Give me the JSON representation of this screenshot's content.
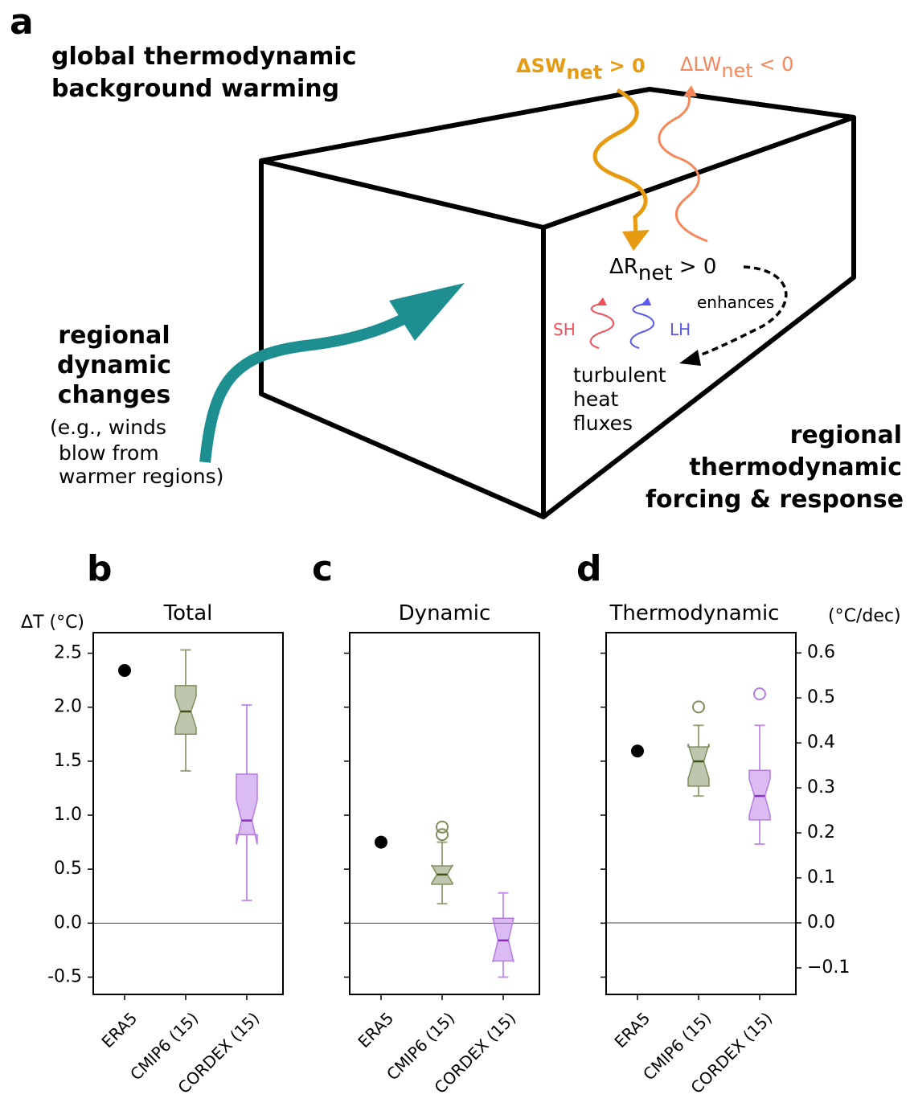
{
  "diagram": {
    "panel_label": "a",
    "global_warming": [
      "global thermodynamic",
      "background warming"
    ],
    "sw": {
      "text": "ΔSW",
      "sub": "net",
      "rest": " > 0"
    },
    "lw": {
      "text": "ΔLW",
      "sub": "net",
      "rest": " < 0"
    },
    "rnet": {
      "text": "ΔR",
      "sub": "net",
      "rest": " > 0"
    },
    "enhances": "enhances",
    "sh": "SH",
    "lh": "LH",
    "turbulent": [
      "turbulent",
      "heat",
      "fluxes"
    ],
    "dynamic": [
      "regional",
      "dynamic",
      "changes"
    ],
    "example": [
      "(e.g., winds",
      "blow from",
      "warmer regions)"
    ],
    "thermo": [
      "regional",
      "thermodynamic",
      "forcing & response"
    ]
  },
  "chart_data": [
    {
      "type": "box",
      "panel_label": "b",
      "title": "Total",
      "y_label": "ΔT (°C)",
      "categories": [
        "ERA5",
        "CMIP6 (15)",
        "CORDEX (15)"
      ],
      "ylim": [
        -0.66,
        2.69
      ],
      "yticks": [
        -0.5,
        {
          "value": 0,
          "label": "0.0"
        },
        0.5,
        {
          "value": 1,
          "label": "1.0"
        },
        1.5,
        {
          "value": 2,
          "label": "2.0"
        },
        2.5
      ],
      "tick_labels": true,
      "zero_line": true,
      "colors": [
        "#000000",
        "#7d8f5e",
        "#b57ae6"
      ],
      "points": [
        2.34,
        null,
        null
      ],
      "boxes": [
        null,
        {
          "whislo": 1.41,
          "q1": 1.75,
          "notch_lo": 1.81,
          "med": 1.96,
          "notch_hi": 2.1,
          "q3": 2.2,
          "whishi": 2.53,
          "fliers": []
        },
        {
          "whislo": 0.21,
          "q1": 0.82,
          "notch_lo": 0.73,
          "med": 0.95,
          "notch_hi": 1.14,
          "q3": 1.38,
          "whishi": 2.02,
          "fliers": []
        }
      ]
    },
    {
      "type": "box",
      "panel_label": "c",
      "title": "Dynamic",
      "categories": [
        "ERA5",
        "CMIP6 (15)",
        "CORDEX (15)"
      ],
      "ylim": [
        -0.66,
        2.69
      ],
      "yticks": [
        -0.5,
        0,
        0.5,
        1,
        1.5,
        2,
        2.5
      ],
      "tick_labels": false,
      "zero_line": true,
      "colors": [
        "#000000",
        "#7d8f5e",
        "#b57ae6"
      ],
      "points": [
        0.75,
        null,
        null
      ],
      "boxes": [
        null,
        {
          "whislo": 0.18,
          "q1": 0.36,
          "notch_lo": 0.37,
          "med": 0.45,
          "notch_hi": 0.54,
          "q3": 0.53,
          "whishi": 0.75,
          "fliers": [
            0.82,
            0.89
          ]
        },
        {
          "whislo": -0.5,
          "q1": -0.35,
          "notch_lo": -0.36,
          "med": -0.16,
          "notch_hi": 0.05,
          "q3": 0.045,
          "whishi": 0.28,
          "fliers": []
        }
      ]
    },
    {
      "type": "box",
      "panel_label": "d",
      "title": "Thermodynamic",
      "y2_label": "(°C/dec)",
      "categories": [
        "ERA5",
        "CMIP6 (15)",
        "CORDEX (15)"
      ],
      "ylim": [
        -0.66,
        2.69
      ],
      "yticks": [
        -0.5,
        0,
        0.5,
        1,
        1.5,
        2,
        2.5
      ],
      "tick_labels": false,
      "zero_line": true,
      "y2lim": [
        -0.159,
        0.645
      ],
      "y2ticks": [
        {
          "value": -0.1,
          "label": "−0.1"
        },
        {
          "value": 0,
          "label": "0.0"
        },
        0.1,
        0.2,
        0.3,
        0.4,
        0.5,
        0.6
      ],
      "axis": "y2",
      "colors": [
        "#000000",
        "#7d8f5e",
        "#b57ae6"
      ],
      "points": [
        0.382,
        null,
        null
      ],
      "boxes": [
        null,
        {
          "whislo": 0.282,
          "q1": 0.304,
          "notch_lo": 0.32,
          "med": 0.359,
          "notch_hi": 0.398,
          "q3": 0.391,
          "whishi": 0.439,
          "fliers": [
            0.48
          ]
        },
        {
          "whislo": 0.175,
          "q1": 0.229,
          "notch_lo": 0.24,
          "med": 0.282,
          "notch_hi": 0.32,
          "q3": 0.339,
          "whishi": 0.439,
          "fliers": [
            0.509
          ]
        }
      ]
    }
  ]
}
